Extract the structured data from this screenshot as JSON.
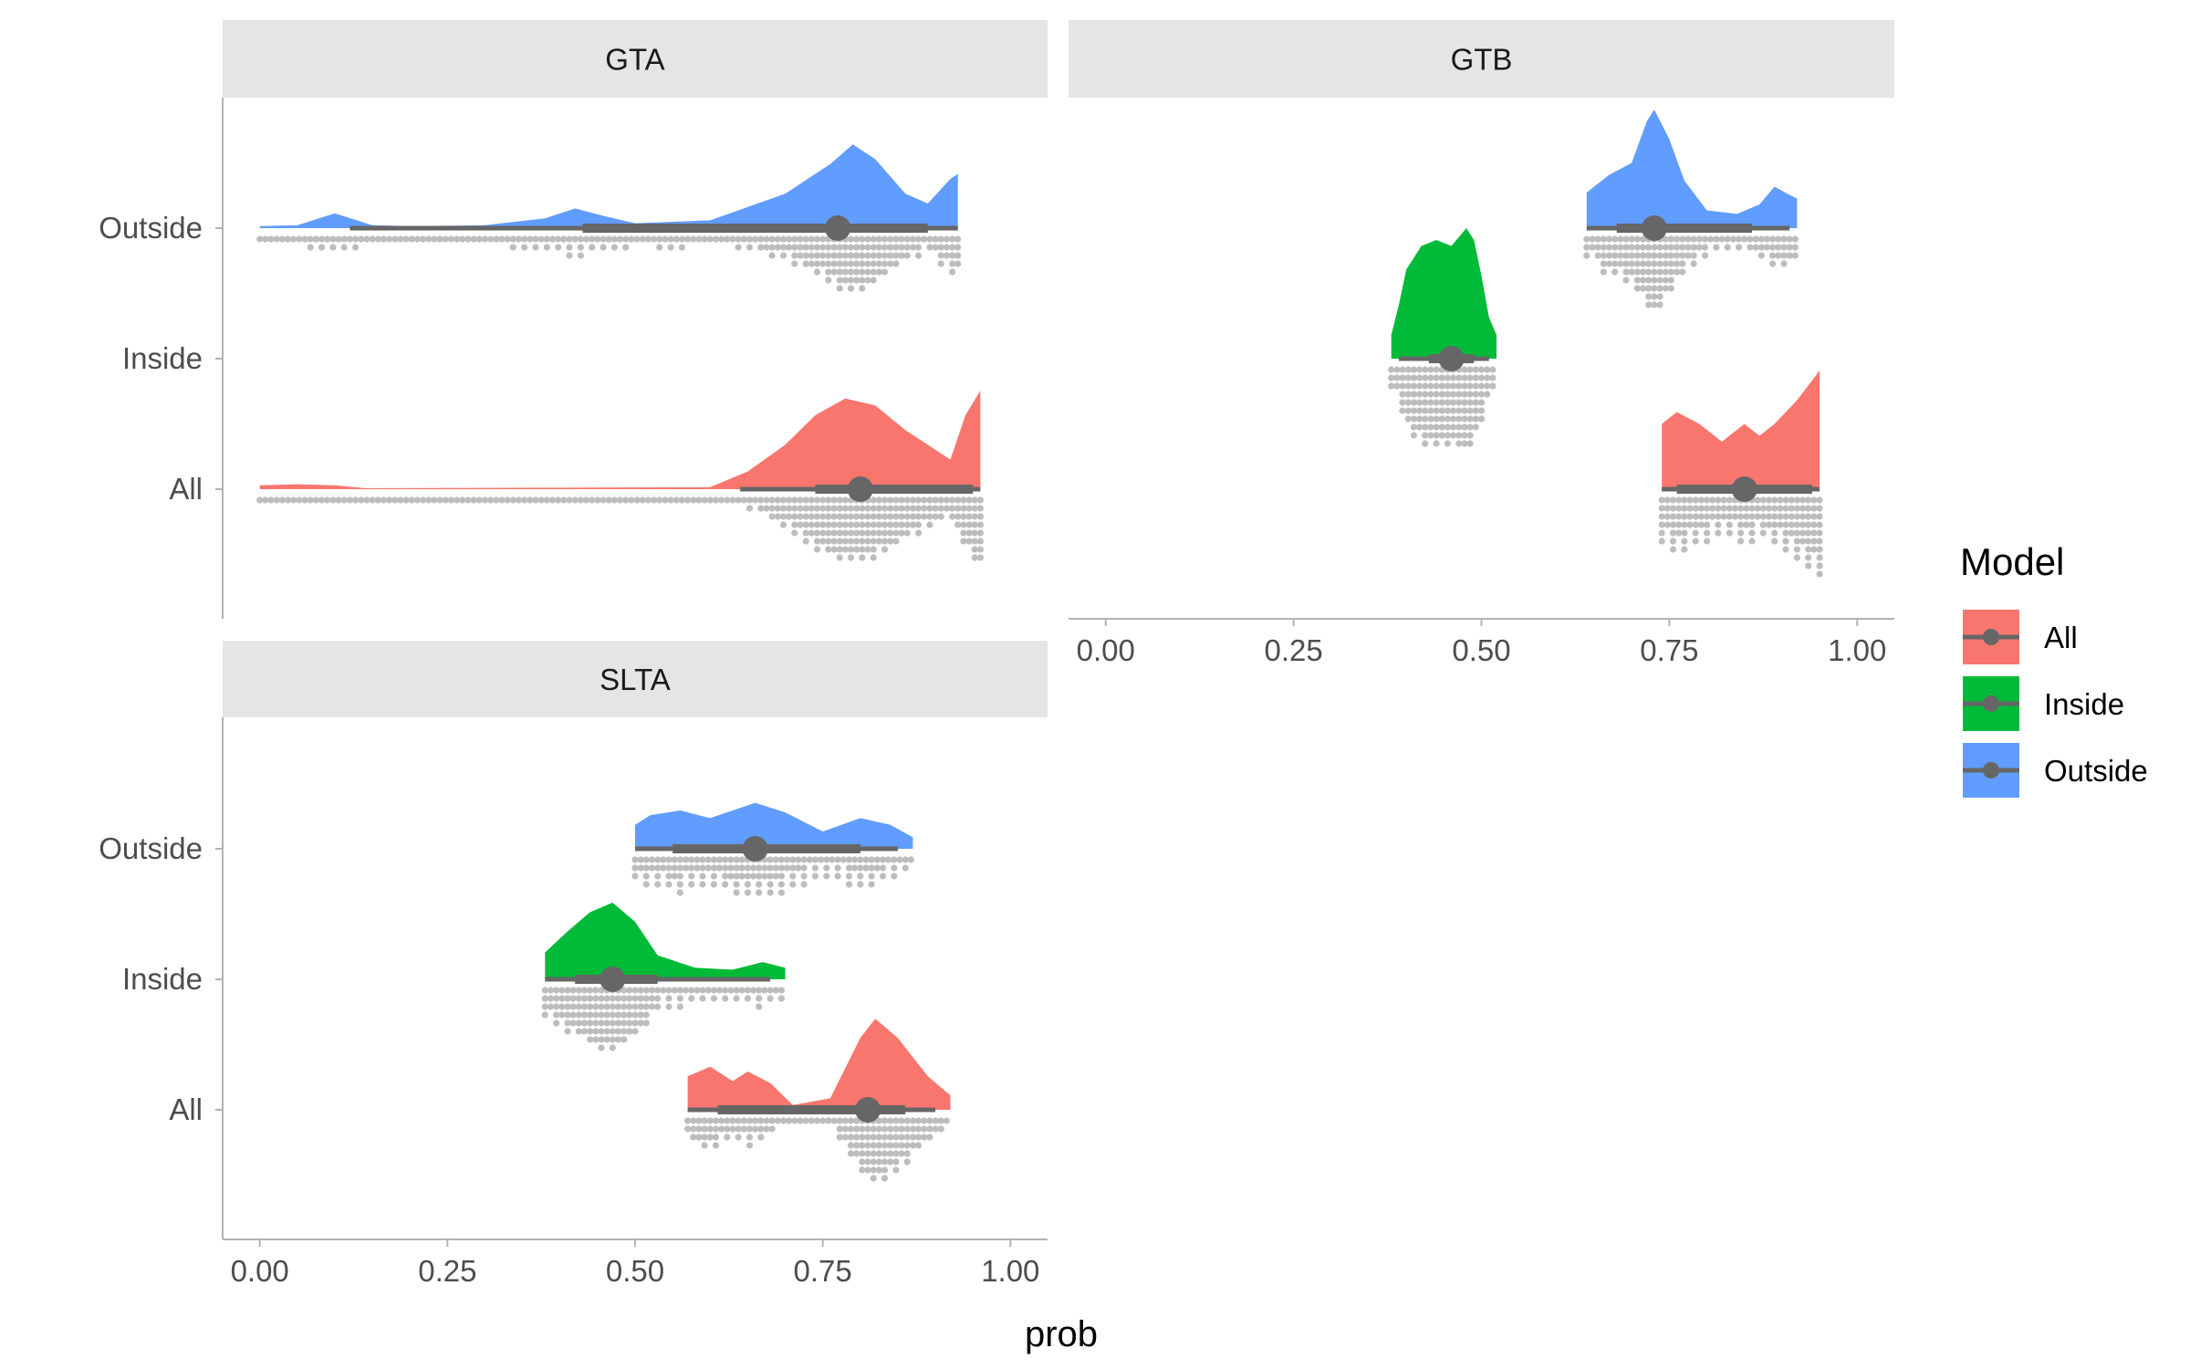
{
  "chart_data": {
    "type": "raincloud",
    "xlabel": "prob",
    "xlim": [
      0,
      1
    ],
    "x_ticks": [
      "0.00",
      "0.25",
      "0.50",
      "0.75",
      "1.00"
    ],
    "y_categories": [
      "Outside",
      "Inside",
      "All"
    ],
    "grid": false,
    "legend": {
      "title": "Model",
      "placement": "right",
      "items": [
        {
          "label": "All",
          "color": "#F8766D"
        },
        {
          "label": "Inside",
          "color": "#00BA38"
        },
        {
          "label": "Outside",
          "color": "#619CFF"
        }
      ]
    },
    "panels": [
      {
        "title": "GTA",
        "series": [
          {
            "name": "Outside",
            "density_range": [
              0.0,
              0.93
            ],
            "density": [
              [
                0.0,
                0.02
              ],
              [
                0.05,
                0.03
              ],
              [
                0.1,
                0.15
              ],
              [
                0.15,
                0.03
              ],
              [
                0.2,
                0.02
              ],
              [
                0.3,
                0.03
              ],
              [
                0.38,
                0.1
              ],
              [
                0.42,
                0.2
              ],
              [
                0.46,
                0.12
              ],
              [
                0.5,
                0.05
              ],
              [
                0.6,
                0.08
              ],
              [
                0.7,
                0.35
              ],
              [
                0.76,
                0.65
              ],
              [
                0.79,
                0.85
              ],
              [
                0.82,
                0.7
              ],
              [
                0.86,
                0.35
              ],
              [
                0.89,
                0.25
              ],
              [
                0.92,
                0.5
              ],
              [
                0.93,
                0.55
              ]
            ],
            "median": 0.77,
            "interval_66": [
              0.43,
              0.89
            ],
            "interval_95": [
              0.12,
              0.93
            ]
          },
          {
            "name": "Inside",
            "density_range": [],
            "density": [],
            "median": null,
            "interval_66": [],
            "interval_95": []
          },
          {
            "name": "All",
            "density_range": [
              0.0,
              0.96
            ],
            "density": [
              [
                0.0,
                0.04
              ],
              [
                0.05,
                0.05
              ],
              [
                0.1,
                0.04
              ],
              [
                0.14,
                0.01
              ],
              [
                0.6,
                0.02
              ],
              [
                0.65,
                0.18
              ],
              [
                0.7,
                0.45
              ],
              [
                0.74,
                0.75
              ],
              [
                0.78,
                0.92
              ],
              [
                0.82,
                0.85
              ],
              [
                0.86,
                0.6
              ],
              [
                0.89,
                0.45
              ],
              [
                0.92,
                0.3
              ],
              [
                0.94,
                0.75
              ],
              [
                0.96,
                1.0
              ]
            ],
            "median": 0.8,
            "interval_66": [
              0.74,
              0.95
            ],
            "interval_95": [
              0.64,
              0.96
            ]
          }
        ]
      },
      {
        "title": "GTB",
        "series": [
          {
            "name": "Outside",
            "density_range": [
              0.64,
              0.92
            ],
            "density": [
              [
                0.64,
                0.3
              ],
              [
                0.67,
                0.45
              ],
              [
                0.7,
                0.55
              ],
              [
                0.72,
                0.9
              ],
              [
                0.73,
                1.0
              ],
              [
                0.75,
                0.75
              ],
              [
                0.77,
                0.4
              ],
              [
                0.8,
                0.15
              ],
              [
                0.84,
                0.12
              ],
              [
                0.87,
                0.2
              ],
              [
                0.89,
                0.35
              ],
              [
                0.91,
                0.28
              ],
              [
                0.92,
                0.25
              ]
            ],
            "median": 0.73,
            "interval_66": [
              0.68,
              0.86
            ],
            "interval_95": [
              0.64,
              0.91
            ]
          },
          {
            "name": "Inside",
            "density_range": [
              0.38,
              0.52
            ],
            "density": [
              [
                0.38,
                0.2
              ],
              [
                0.39,
                0.45
              ],
              [
                0.4,
                0.75
              ],
              [
                0.42,
                0.95
              ],
              [
                0.44,
                1.0
              ],
              [
                0.46,
                0.95
              ],
              [
                0.48,
                1.1
              ],
              [
                0.49,
                1.0
              ],
              [
                0.5,
                0.7
              ],
              [
                0.51,
                0.35
              ],
              [
                0.52,
                0.2
              ]
            ],
            "median": 0.46,
            "interval_66": [
              0.43,
              0.49
            ],
            "interval_95": [
              0.39,
              0.51
            ]
          },
          {
            "name": "All",
            "density_range": [
              0.74,
              0.95
            ],
            "density": [
              [
                0.74,
                0.55
              ],
              [
                0.76,
                0.65
              ],
              [
                0.79,
                0.55
              ],
              [
                0.82,
                0.4
              ],
              [
                0.85,
                0.55
              ],
              [
                0.87,
                0.45
              ],
              [
                0.89,
                0.55
              ],
              [
                0.92,
                0.75
              ],
              [
                0.95,
                1.0
              ]
            ],
            "median": 0.85,
            "interval_66": [
              0.76,
              0.94
            ],
            "interval_95": [
              0.74,
              0.95
            ]
          }
        ]
      },
      {
        "title": "SLTA",
        "series": [
          {
            "name": "Outside",
            "density_range": [
              0.5,
              0.87
            ],
            "density": [
              [
                0.5,
                0.25
              ],
              [
                0.52,
                0.35
              ],
              [
                0.56,
                0.4
              ],
              [
                0.6,
                0.32
              ],
              [
                0.66,
                0.48
              ],
              [
                0.7,
                0.38
              ],
              [
                0.75,
                0.18
              ],
              [
                0.8,
                0.32
              ],
              [
                0.84,
                0.25
              ],
              [
                0.87,
                0.12
              ]
            ],
            "median": 0.66,
            "interval_66": [
              0.55,
              0.8
            ],
            "interval_95": [
              0.5,
              0.85
            ]
          },
          {
            "name": "Inside",
            "density_range": [
              0.38,
              0.7
            ],
            "density": [
              [
                0.38,
                0.28
              ],
              [
                0.41,
                0.5
              ],
              [
                0.44,
                0.7
              ],
              [
                0.47,
                0.8
              ],
              [
                0.5,
                0.6
              ],
              [
                0.53,
                0.25
              ],
              [
                0.58,
                0.12
              ],
              [
                0.63,
                0.1
              ],
              [
                0.67,
                0.18
              ],
              [
                0.7,
                0.12
              ]
            ],
            "median": 0.47,
            "interval_66": [
              0.42,
              0.53
            ],
            "interval_95": [
              0.38,
              0.68
            ]
          },
          {
            "name": "All",
            "density_range": [
              0.57,
              0.92
            ],
            "density": [
              [
                0.57,
                0.35
              ],
              [
                0.6,
                0.45
              ],
              [
                0.63,
                0.3
              ],
              [
                0.65,
                0.4
              ],
              [
                0.68,
                0.28
              ],
              [
                0.71,
                0.05
              ],
              [
                0.76,
                0.12
              ],
              [
                0.8,
                0.75
              ],
              [
                0.82,
                0.95
              ],
              [
                0.85,
                0.75
              ],
              [
                0.89,
                0.35
              ],
              [
                0.92,
                0.15
              ]
            ],
            "median": 0.81,
            "interval_66": [
              0.61,
              0.86
            ],
            "interval_95": [
              0.57,
              0.9
            ]
          }
        ]
      }
    ]
  }
}
